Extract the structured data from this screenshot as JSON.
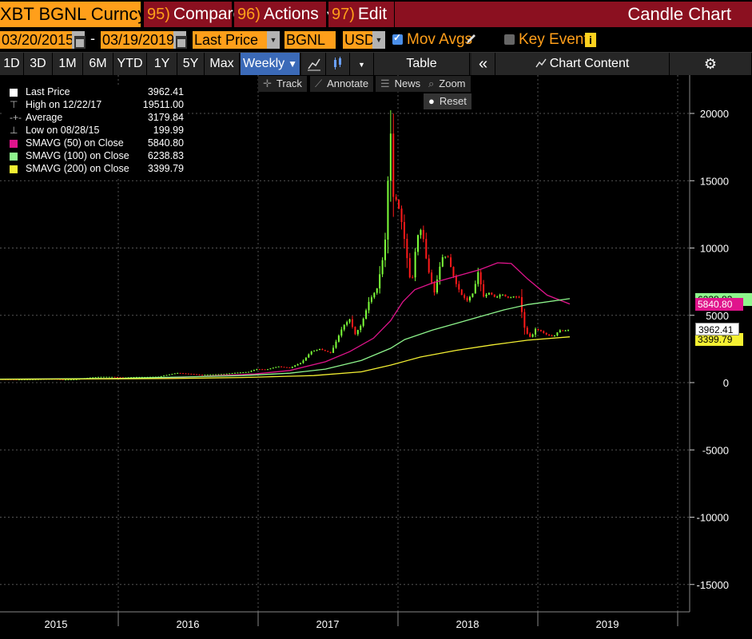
{
  "header": {
    "ticker": "XBT BGNL Curncy",
    "compare_num": "95)",
    "compare_label": "Compare",
    "actions_num": "96)",
    "actions_label": "Actions",
    "edit_num": "97)",
    "edit_label": "Edit",
    "title": "Candle Chart"
  },
  "controls": {
    "start_date": "03/20/2015",
    "dash": "-",
    "end_date": "03/19/2019",
    "field": "Last Price",
    "source": "BGNL",
    "currency": "USD",
    "mov_avgs_label": "Mov Avgs",
    "mov_avgs_checked": true,
    "key_events_label": "Key Events",
    "key_events_checked": false,
    "info_glyph": "i"
  },
  "toolbar": {
    "ranges": [
      "1D",
      "3D",
      "1M",
      "6M",
      "YTD",
      "1Y",
      "5Y",
      "Max"
    ],
    "frequency": "Weekly",
    "table_label": "Table",
    "collapse_glyph": "«",
    "chart_content_label": "Chart Content",
    "settings_glyph": "⚙"
  },
  "chart_tools": {
    "track": "Track",
    "annotate": "Annotate",
    "news": "News",
    "zoom": "Zoom",
    "reset": "Reset"
  },
  "legend": {
    "last_price_label": "Last Price",
    "last_price_value": "3962.41",
    "high_label": "High on 12/22/17",
    "high_value": "19511.00",
    "average_label": "Average",
    "average_value": "3179.84",
    "low_label": "Low on 08/28/15",
    "low_value": "199.99",
    "sma50_label": "SMAVG (50)  on Close",
    "sma50_value": "5840.80",
    "sma100_label": "SMAVG (100)  on Close",
    "sma100_value": "6238.83",
    "sma200_label": "SMAVG (200)  on Close",
    "sma200_value": "3399.79"
  },
  "price_tags": {
    "sma100": "6238.83",
    "sma50": "5840.80",
    "last": "3962.41",
    "sma200": "3399.79"
  },
  "colors": {
    "background": "#000000",
    "orange": "#ff9f1a",
    "header_red": "#8b1020",
    "up_candle": "#7dff3a",
    "down_candle": "#ff1a1a",
    "sma50": "#e0148c",
    "sma100": "#8ef58c",
    "sma200": "#f4f032",
    "active_tab": "#3b6ab8"
  },
  "chart_data": {
    "type": "candlestick",
    "frequency": "weekly",
    "x_tick_labels": [
      "2015",
      "2016",
      "2017",
      "2018",
      "2019"
    ],
    "y_tick_labels": [
      "20000",
      "15000",
      "10000",
      "5000",
      "0",
      "-5000",
      "-10000",
      "-15000"
    ],
    "ylim": [
      -16500,
      22000
    ],
    "xlim": [
      "2015-03-20",
      "2019-03-19"
    ],
    "grid": true,
    "weekly_close": [
      [
        "2015-03-20",
        260
      ],
      [
        "2015-05-01",
        235
      ],
      [
        "2015-06-15",
        245
      ],
      [
        "2015-08-01",
        280
      ],
      [
        "2015-08-28",
        225
      ],
      [
        "2015-10-01",
        240
      ],
      [
        "2015-11-06",
        380
      ],
      [
        "2015-12-01",
        430
      ],
      [
        "2016-01-01",
        430
      ],
      [
        "2016-02-01",
        380
      ],
      [
        "2016-03-01",
        420
      ],
      [
        "2016-04-01",
        420
      ],
      [
        "2016-05-01",
        450
      ],
      [
        "2016-06-15",
        720
      ],
      [
        "2016-07-15",
        660
      ],
      [
        "2016-08-15",
        580
      ],
      [
        "2016-09-15",
        610
      ],
      [
        "2016-10-15",
        640
      ],
      [
        "2016-11-15",
        740
      ],
      [
        "2016-12-15",
        790
      ],
      [
        "2017-01-05",
        1000
      ],
      [
        "2017-02-01",
        980
      ],
      [
        "2017-03-01",
        1200
      ],
      [
        "2017-04-01",
        1100
      ],
      [
        "2017-05-01",
        1500
      ],
      [
        "2017-05-25",
        2300
      ],
      [
        "2017-06-15",
        2500
      ],
      [
        "2017-07-15",
        2200
      ],
      [
        "2017-08-15",
        4200
      ],
      [
        "2017-09-01",
        4700
      ],
      [
        "2017-09-15",
        3600
      ],
      [
        "2017-10-01",
        4300
      ],
      [
        "2017-10-20",
        6000
      ],
      [
        "2017-11-10",
        7000
      ],
      [
        "2017-11-30",
        10000
      ],
      [
        "2017-12-08",
        15000
      ],
      [
        "2017-12-17",
        19500
      ],
      [
        "2017-12-22",
        13800
      ],
      [
        "2018-01-01",
        13500
      ],
      [
        "2018-01-15",
        11500
      ],
      [
        "2018-02-06",
        7000
      ],
      [
        "2018-02-20",
        10800
      ],
      [
        "2018-03-05",
        11500
      ],
      [
        "2018-03-19",
        8600
      ],
      [
        "2018-04-06",
        6700
      ],
      [
        "2018-04-25",
        9300
      ],
      [
        "2018-05-10",
        9400
      ],
      [
        "2018-05-29",
        7500
      ],
      [
        "2018-06-15",
        6500
      ],
      [
        "2018-06-29",
        6100
      ],
      [
        "2018-07-15",
        6700
      ],
      [
        "2018-07-27",
        8200
      ],
      [
        "2018-08-10",
        6400
      ],
      [
        "2018-08-25",
        6700
      ],
      [
        "2018-09-10",
        6300
      ],
      [
        "2018-09-25",
        6600
      ],
      [
        "2018-10-10",
        6300
      ],
      [
        "2018-10-25",
        6400
      ],
      [
        "2018-11-10",
        6350
      ],
      [
        "2018-11-20",
        4500
      ],
      [
        "2018-11-25",
        3800
      ],
      [
        "2018-12-10",
        3300
      ],
      [
        "2018-12-20",
        4000
      ],
      [
        "2019-01-05",
        3800
      ],
      [
        "2019-01-20",
        3550
      ],
      [
        "2019-02-05",
        3400
      ],
      [
        "2019-02-20",
        3900
      ],
      [
        "2019-03-05",
        3850
      ],
      [
        "2019-03-19",
        3962
      ]
    ],
    "series": [
      {
        "name": "SMAVG (50) on Close",
        "values": [
          [
            "2015-03-20",
            250
          ],
          [
            "2016-01-01",
            300
          ],
          [
            "2016-06-01",
            350
          ],
          [
            "2016-10-01",
            520
          ],
          [
            "2017-01-01",
            640
          ],
          [
            "2017-04-01",
            900
          ],
          [
            "2017-07-01",
            1550
          ],
          [
            "2017-09-01",
            2300
          ],
          [
            "2017-11-01",
            3300
          ],
          [
            "2017-12-15",
            4600
          ],
          [
            "2018-01-15",
            6000
          ],
          [
            "2018-02-15",
            6900
          ],
          [
            "2018-04-01",
            7400
          ],
          [
            "2018-06-01",
            7900
          ],
          [
            "2018-08-01",
            8400
          ],
          [
            "2018-09-15",
            8900
          ],
          [
            "2018-10-20",
            8850
          ],
          [
            "2018-12-01",
            7700
          ],
          [
            "2019-01-20",
            6500
          ],
          [
            "2019-03-19",
            5840.8
          ]
        ]
      },
      {
        "name": "SMAVG (100) on Close",
        "values": [
          [
            "2015-03-20",
            260
          ],
          [
            "2016-01-01",
            300
          ],
          [
            "2016-06-01",
            400
          ],
          [
            "2016-12-01",
            520
          ],
          [
            "2017-04-01",
            700
          ],
          [
            "2017-07-01",
            1000
          ],
          [
            "2017-10-01",
            1650
          ],
          [
            "2017-12-15",
            2550
          ],
          [
            "2018-01-20",
            3200
          ],
          [
            "2018-04-01",
            3900
          ],
          [
            "2018-06-01",
            4400
          ],
          [
            "2018-08-01",
            4900
          ],
          [
            "2018-10-01",
            5400
          ],
          [
            "2018-12-01",
            5800
          ],
          [
            "2019-03-19",
            6238.83
          ]
        ]
      },
      {
        "name": "SMAVG (200) on Close",
        "values": [
          [
            "2015-03-20",
            240
          ],
          [
            "2016-01-01",
            280
          ],
          [
            "2016-06-01",
            300
          ],
          [
            "2016-12-01",
            380
          ],
          [
            "2017-06-01",
            520
          ],
          [
            "2017-10-01",
            800
          ],
          [
            "2017-12-15",
            1300
          ],
          [
            "2018-03-01",
            1900
          ],
          [
            "2018-06-01",
            2400
          ],
          [
            "2018-09-01",
            2800
          ],
          [
            "2018-12-01",
            3150
          ],
          [
            "2019-03-19",
            3399.79
          ]
        ]
      }
    ]
  }
}
